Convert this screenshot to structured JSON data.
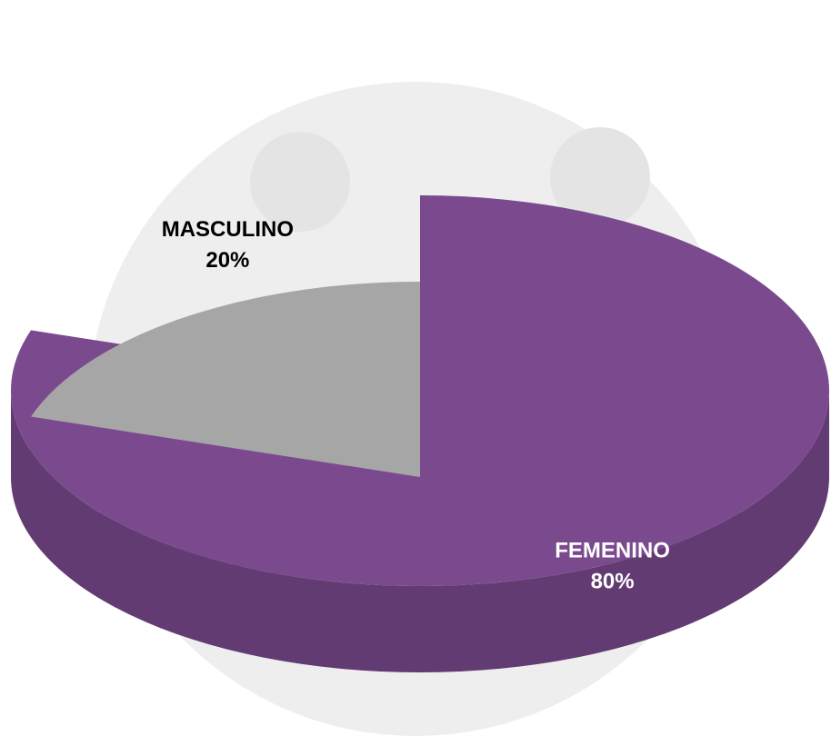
{
  "chart_data": {
    "type": "pie",
    "categories": [
      "FEMENINO",
      "MASCULINO"
    ],
    "values": [
      80,
      20
    ],
    "value_labels": [
      "80%",
      "20%"
    ],
    "colors": [
      "#7b4a8e",
      "#a6a6a6"
    ]
  }
}
